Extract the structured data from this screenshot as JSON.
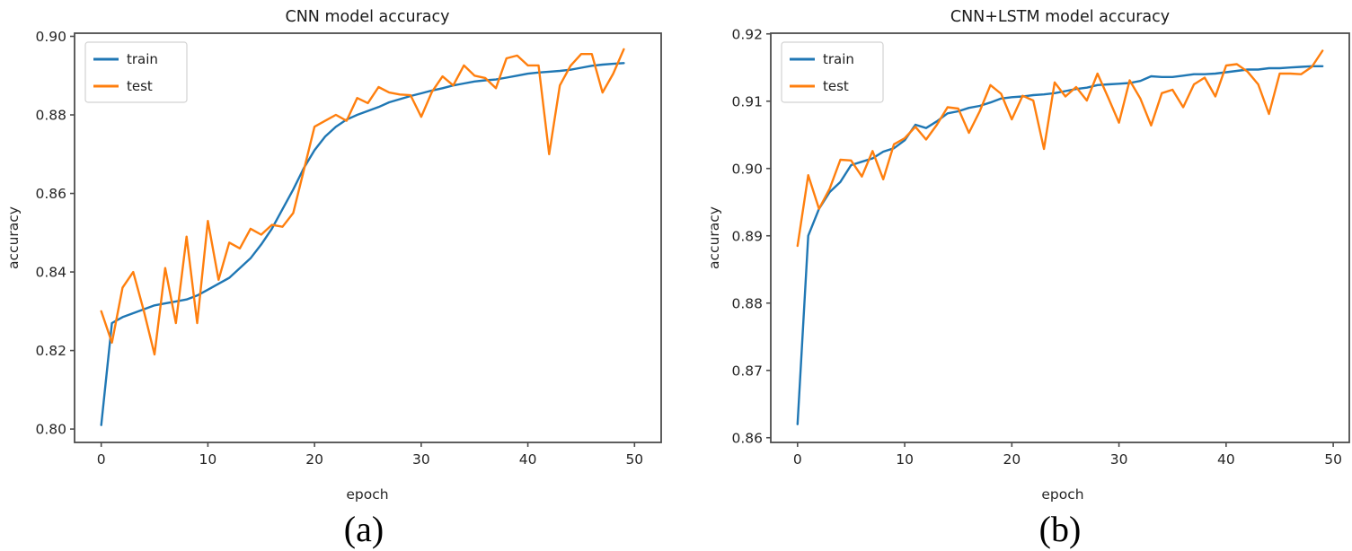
{
  "figure_background": "#ffffff",
  "series_colors": {
    "train": "#1f77b4",
    "test": "#ff7f0e"
  },
  "chart_data": [
    {
      "type": "line",
      "title": "CNN model accuracy",
      "xlabel": "epoch",
      "ylabel": "accuracy",
      "caption": "(a)",
      "legend_position": "upper left",
      "legend": [
        "train",
        "test"
      ],
      "xlim": [
        -2.5,
        52.5
      ],
      "ylim": [
        0.7966,
        0.9008
      ],
      "xticks": [
        0,
        10,
        20,
        30,
        40,
        50
      ],
      "ytick_values": [
        0.8,
        0.82,
        0.84,
        0.86,
        0.88,
        0.9
      ],
      "ytick_labels": [
        "0.80",
        "0.82",
        "0.84",
        "0.86",
        "0.88",
        "0.90"
      ],
      "x": [
        0,
        1,
        2,
        3,
        4,
        5,
        6,
        7,
        8,
        9,
        10,
        11,
        12,
        13,
        14,
        15,
        16,
        17,
        18,
        19,
        20,
        21,
        22,
        23,
        24,
        25,
        26,
        27,
        28,
        29,
        30,
        31,
        32,
        33,
        34,
        35,
        36,
        37,
        38,
        39,
        40,
        41,
        42,
        43,
        44,
        45,
        46,
        47,
        48,
        49
      ],
      "series": [
        {
          "name": "train",
          "color": "#1f77b4",
          "values": [
            0.801,
            0.827,
            0.8285,
            0.8295,
            0.8305,
            0.8315,
            0.832,
            0.8325,
            0.833,
            0.834,
            0.8355,
            0.837,
            0.8385,
            0.841,
            0.8435,
            0.847,
            0.851,
            0.856,
            0.861,
            0.8665,
            0.871,
            0.8745,
            0.877,
            0.8788,
            0.88,
            0.881,
            0.882,
            0.8832,
            0.884,
            0.8848,
            0.8855,
            0.8862,
            0.8868,
            0.8875,
            0.888,
            0.8885,
            0.8888,
            0.889,
            0.8895,
            0.89,
            0.8905,
            0.8908,
            0.891,
            0.8912,
            0.8915,
            0.892,
            0.8925,
            0.8928,
            0.893,
            0.8932
          ]
        },
        {
          "name": "test",
          "color": "#ff7f0e",
          "values": [
            0.83,
            0.822,
            0.836,
            0.84,
            0.83,
            0.819,
            0.841,
            0.827,
            0.849,
            0.827,
            0.853,
            0.838,
            0.8475,
            0.846,
            0.851,
            0.8495,
            0.852,
            0.8515,
            0.855,
            0.866,
            0.877,
            0.8785,
            0.88,
            0.8785,
            0.8843,
            0.883,
            0.8871,
            0.8857,
            0.8852,
            0.885,
            0.8795,
            0.8858,
            0.8898,
            0.8875,
            0.8926,
            0.89,
            0.8894,
            0.8868,
            0.8944,
            0.8951,
            0.8926,
            0.8926,
            0.87,
            0.8875,
            0.8925,
            0.8955,
            0.8955,
            0.8857,
            0.8905,
            0.8967
          ]
        }
      ]
    },
    {
      "type": "line",
      "title": "CNN+LSTM model accuracy",
      "xlabel": "epoch",
      "ylabel": "accuracy",
      "caption": "(b)",
      "legend_position": "upper left",
      "legend": [
        "train",
        "test"
      ],
      "xlim": [
        -2.5,
        51.5
      ],
      "ylim": [
        0.8593,
        0.9201
      ],
      "xticks": [
        0,
        10,
        20,
        30,
        40,
        50
      ],
      "ytick_values": [
        0.86,
        0.87,
        0.88,
        0.89,
        0.9,
        0.91,
        0.92
      ],
      "ytick_labels": [
        "0.86",
        "0.87",
        "0.88",
        "0.89",
        "0.90",
        "0.91",
        "0.92"
      ],
      "x": [
        0,
        1,
        2,
        3,
        4,
        5,
        6,
        7,
        8,
        9,
        10,
        11,
        12,
        13,
        14,
        15,
        16,
        17,
        18,
        19,
        20,
        21,
        22,
        23,
        24,
        25,
        26,
        27,
        28,
        29,
        30,
        31,
        32,
        33,
        34,
        35,
        36,
        37,
        38,
        39,
        40,
        41,
        42,
        43,
        44,
        45,
        46,
        47,
        48,
        49
      ],
      "series": [
        {
          "name": "train",
          "color": "#1f77b4",
          "values": [
            0.862,
            0.89,
            0.894,
            0.8965,
            0.898,
            0.9005,
            0.901,
            0.9015,
            0.9025,
            0.903,
            0.9042,
            0.9065,
            0.906,
            0.907,
            0.9082,
            0.9085,
            0.909,
            0.9093,
            0.9098,
            0.9104,
            0.9106,
            0.9107,
            0.9109,
            0.911,
            0.9112,
            0.9115,
            0.9118,
            0.912,
            0.9124,
            0.9125,
            0.9126,
            0.9127,
            0.913,
            0.9137,
            0.9136,
            0.9136,
            0.9138,
            0.914,
            0.914,
            0.9141,
            0.9143,
            0.9145,
            0.9147,
            0.9147,
            0.9149,
            0.9149,
            0.915,
            0.9151,
            0.9152,
            0.9152
          ]
        },
        {
          "name": "test",
          "color": "#ff7f0e",
          "values": [
            0.8885,
            0.899,
            0.894,
            0.897,
            0.9013,
            0.9012,
            0.8988,
            0.9026,
            0.8984,
            0.9036,
            0.9045,
            0.9062,
            0.9043,
            0.9065,
            0.9091,
            0.9089,
            0.9053,
            0.9085,
            0.9124,
            0.9111,
            0.9073,
            0.9108,
            0.9101,
            0.9029,
            0.9128,
            0.9107,
            0.9121,
            0.9101,
            0.9141,
            0.9105,
            0.9068,
            0.9131,
            0.9104,
            0.9064,
            0.9112,
            0.9117,
            0.9091,
            0.9125,
            0.9135,
            0.9107,
            0.9153,
            0.9155,
            0.9144,
            0.9125,
            0.9081,
            0.9141,
            0.9141,
            0.914,
            0.9151,
            0.9175
          ]
        }
      ]
    }
  ]
}
